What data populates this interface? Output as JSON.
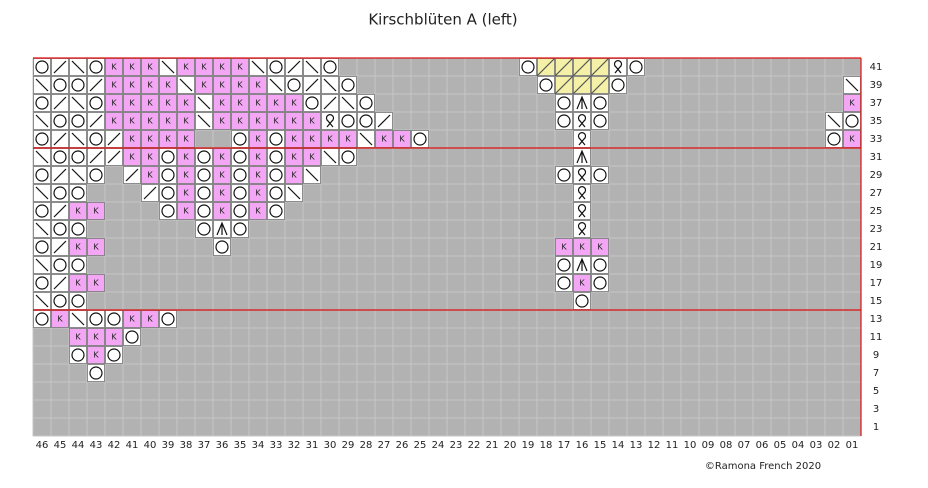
{
  "chart": {
    "title": "Kirschblüten A (left)",
    "copyright": "©Ramona French 2020",
    "columns": [
      "46",
      "45",
      "44",
      "43",
      "42",
      "41",
      "40",
      "39",
      "38",
      "37",
      "36",
      "35",
      "34",
      "33",
      "32",
      "31",
      "30",
      "29",
      "28",
      "27",
      "26",
      "25",
      "24",
      "23",
      "22",
      "21",
      "20",
      "19",
      "18",
      "17",
      "16",
      "15",
      "14",
      "13",
      "12",
      "11",
      "10",
      "09",
      "08",
      "07",
      "06",
      "05",
      "04",
      "03",
      "02",
      "01"
    ],
    "rows": [
      {
        "label": "41",
        "cells": "O/\\OKKK\\KKKK\\O/\\O..........OyyyyQO............"
      },
      {
        "label": "39",
        "cells": "\\OO/KKKK\\KKKK\\O/\\O..........OyyyO............\\"
      },
      {
        "label": "37",
        "cells": "O/\\OKKKKK\\KKKKKO/\\O..........OAO.............K"
      },
      {
        "label": "35",
        "cells": "\\OO/KKKKK\\KKKKKKQOO/.........OQO............\\O"
      },
      {
        "label": "33",
        "cells": "O/\\O/KKKK..OKOKKKK\\KKO........Q.............OK"
      },
      {
        "label": "31",
        "cells": "\\OO//KKOKOKOKOKK\\O............A..............."
      },
      {
        "label": "29",
        "cells": "O/\\O./KOKOKOKOK\\.............OQO.............."
      },
      {
        "label": "27",
        "cells": "\\OO.../OKOKOKO\\...............Q..............."
      },
      {
        "label": "25",
        "cells": "O/KK...OKOKOKO................Q..............."
      },
      {
        "label": "23",
        "cells": "\\OO......OAO..................Q..............."
      },
      {
        "label": "21",
        "cells": "O/KK......O..................KKK.............."
      },
      {
        "label": "19",
        "cells": "\\OO..........................OAO.............."
      },
      {
        "label": "17",
        "cells": "O/KK.........................OKO.............."
      },
      {
        "label": "15",
        "cells": "\\OO...........................O..............."
      },
      {
        "label": "13",
        "cells": "OK\\OOKKO......................................"
      },
      {
        "label": "11",
        "cells": "..KKKO........................................"
      },
      {
        "label": "9",
        "cells": "..OKO........................................."
      },
      {
        "label": "7",
        "cells": "...O.........................................."
      },
      {
        "label": "5",
        "cells": ".............................................."
      },
      {
        "label": "3",
        "cells": ".............................................."
      },
      {
        "label": "1",
        "cells": ".............................................."
      }
    ]
  }
}
